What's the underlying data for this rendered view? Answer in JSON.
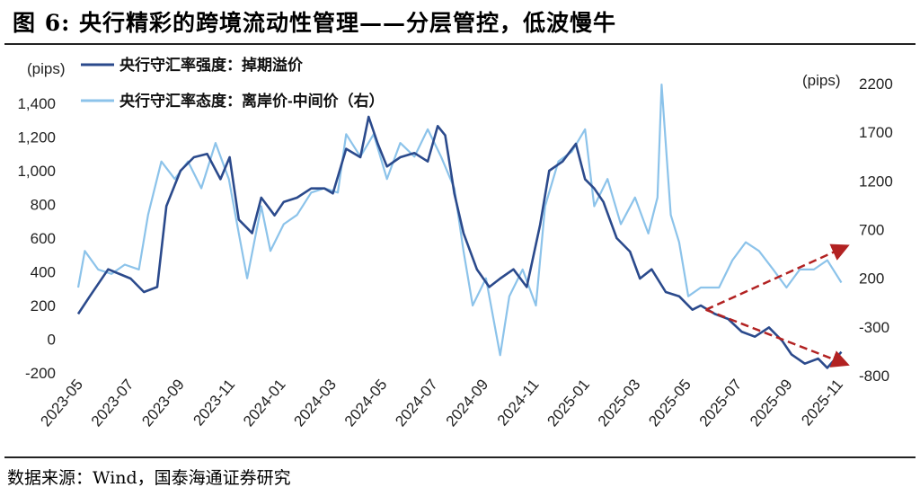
{
  "title": "图 6:   央行精彩的跨境流动性管理——分层管控，低波慢牛",
  "source": "数据来源：Wind，国泰海通证券研究",
  "chart_data": {
    "type": "line",
    "title": "",
    "left_axis": {
      "unit": "(pips)",
      "ylim": [
        -200,
        1400
      ],
      "ticks": [
        -200,
        0,
        200,
        400,
        600,
        800,
        1000,
        1200,
        1400
      ],
      "tick_labels": [
        "-200",
        "0",
        "200",
        "400",
        "600",
        "800",
        "1,000",
        "1,200",
        "1,400"
      ]
    },
    "right_axis": {
      "unit": "(pips)",
      "ylim": [
        -800,
        2200
      ],
      "ticks": [
        -800,
        -300,
        200,
        700,
        1200,
        1700,
        2200
      ],
      "tick_labels": [
        "-800",
        "-300",
        "200",
        "700",
        "1200",
        "1700",
        "2200"
      ]
    },
    "x_tick_labels": [
      "2023-05",
      "2023-07",
      "2023-09",
      "2023-11",
      "2024-01",
      "2024-03",
      "2024-05",
      "2024-07",
      "2024-09",
      "2024-11",
      "2025-01",
      "2025-03",
      "2025-05",
      "2025-07",
      "2025-09",
      "2025-11"
    ],
    "grid": false,
    "legend_placement": "top-left",
    "series": [
      {
        "name": "央行守汇率强度：掉期溢价",
        "axis": "left",
        "color": "#2b4a8c",
        "x": [
          "2023-05-01",
          "2023-05-15",
          "2023-06-06",
          "2023-07-03",
          "2023-07-19",
          "2023-08-04",
          "2023-08-15",
          "2023-09-01",
          "2023-09-17",
          "2023-10-03",
          "2023-10-19",
          "2023-10-30",
          "2023-11-10",
          "2023-11-26",
          "2023-12-07",
          "2023-12-23",
          "2024-01-03",
          "2024-01-19",
          "2024-02-05",
          "2024-02-21",
          "2024-03-02",
          "2024-03-18",
          "2024-04-04",
          "2024-04-14",
          "2024-04-25",
          "2024-05-06",
          "2024-05-22",
          "2024-06-08",
          "2024-06-24",
          "2024-07-06",
          "2024-07-15",
          "2024-07-26",
          "2024-08-06",
          "2024-08-22",
          "2024-09-06",
          "2024-09-19",
          "2024-10-05",
          "2024-10-21",
          "2024-11-06",
          "2024-11-17",
          "2024-12-03",
          "2024-12-19",
          "2024-12-30",
          "2025-01-10",
          "2025-01-21",
          "2025-02-06",
          "2025-02-22",
          "2025-03-06",
          "2025-03-20",
          "2025-04-06",
          "2025-04-22",
          "2025-05-08",
          "2025-05-18",
          "2025-06-04",
          "2025-06-20",
          "2025-07-06",
          "2025-07-22",
          "2025-08-08",
          "2025-08-24",
          "2025-09-04",
          "2025-09-20",
          "2025-10-06",
          "2025-10-17",
          "2025-11-03"
        ],
        "values": [
          150,
          255,
          415,
          360,
          280,
          310,
          790,
          1000,
          1080,
          1100,
          950,
          1080,
          710,
          630,
          840,
          735,
          815,
          840,
          895,
          895,
          865,
          1130,
          1080,
          1320,
          1160,
          1025,
          1080,
          1105,
          1055,
          1265,
          1210,
          865,
          630,
          415,
          310,
          360,
          415,
          310,
          680,
          1000,
          1055,
          1160,
          950,
          895,
          815,
          600,
          520,
          360,
          415,
          280,
          255,
          175,
          200,
          150,
          120,
          45,
          15,
          70,
          -10,
          -90,
          -145,
          -115,
          -170,
          -75
        ]
      },
      {
        "name": "央行守汇率态度：离岸价-中间价（右）",
        "axis": "right",
        "color": "#8cc3ea",
        "x": [
          "2023-05-01",
          "2023-05-09",
          "2023-05-25",
          "2023-06-10",
          "2023-06-26",
          "2023-07-13",
          "2023-07-24",
          "2023-08-09",
          "2023-08-25",
          "2023-09-10",
          "2023-09-26",
          "2023-10-13",
          "2023-10-29",
          "2023-11-10",
          "2023-11-20",
          "2023-12-07",
          "2023-12-18",
          "2024-01-03",
          "2024-01-19",
          "2024-02-05",
          "2024-02-21",
          "2024-03-08",
          "2024-03-18",
          "2024-04-04",
          "2024-04-20",
          "2024-05-06",
          "2024-05-22",
          "2024-06-08",
          "2024-06-24",
          "2024-07-10",
          "2024-07-26",
          "2024-08-06",
          "2024-08-17",
          "2024-09-02",
          "2024-09-19",
          "2024-09-30",
          "2024-10-16",
          "2024-11-01",
          "2024-11-12",
          "2024-11-28",
          "2024-12-14",
          "2024-12-30",
          "2025-01-10",
          "2025-01-26",
          "2025-02-11",
          "2025-02-28",
          "2025-03-16",
          "2025-03-27",
          "2025-04-01",
          "2025-04-12",
          "2025-04-22",
          "2025-05-03",
          "2025-05-18",
          "2025-06-09",
          "2025-06-25",
          "2025-07-11",
          "2025-07-27",
          "2025-08-13",
          "2025-08-29",
          "2025-09-14",
          "2025-10-01",
          "2025-10-17",
          "2025-11-03"
        ],
        "values": [
          105,
          480,
          290,
          245,
          340,
          290,
          850,
          1400,
          1220,
          1400,
          1125,
          1590,
          1220,
          660,
          200,
          940,
          480,
          755,
          850,
          1080,
          1125,
          1080,
          1680,
          1450,
          1680,
          1220,
          1590,
          1450,
          1730,
          1450,
          1125,
          480,
          -80,
          200,
          -590,
          15,
          290,
          -80,
          940,
          1400,
          1500,
          1730,
          940,
          1220,
          755,
          1030,
          660,
          1030,
          2190,
          850,
          570,
          15,
          105,
          105,
          385,
          570,
          480,
          290,
          105,
          290,
          290,
          385,
          155
        ]
      }
    ],
    "annotations": [
      {
        "type": "dashed-arrow",
        "color": "#b22222",
        "axis": "right",
        "from": [
          "2025-05-24",
          -124
        ],
        "to": [
          "2025-11-08",
          524
        ]
      },
      {
        "type": "dashed-arrow",
        "color": "#b22222",
        "axis": "right",
        "from": [
          "2025-05-24",
          -124
        ],
        "to": [
          "2025-11-08",
          -680
        ]
      }
    ]
  }
}
